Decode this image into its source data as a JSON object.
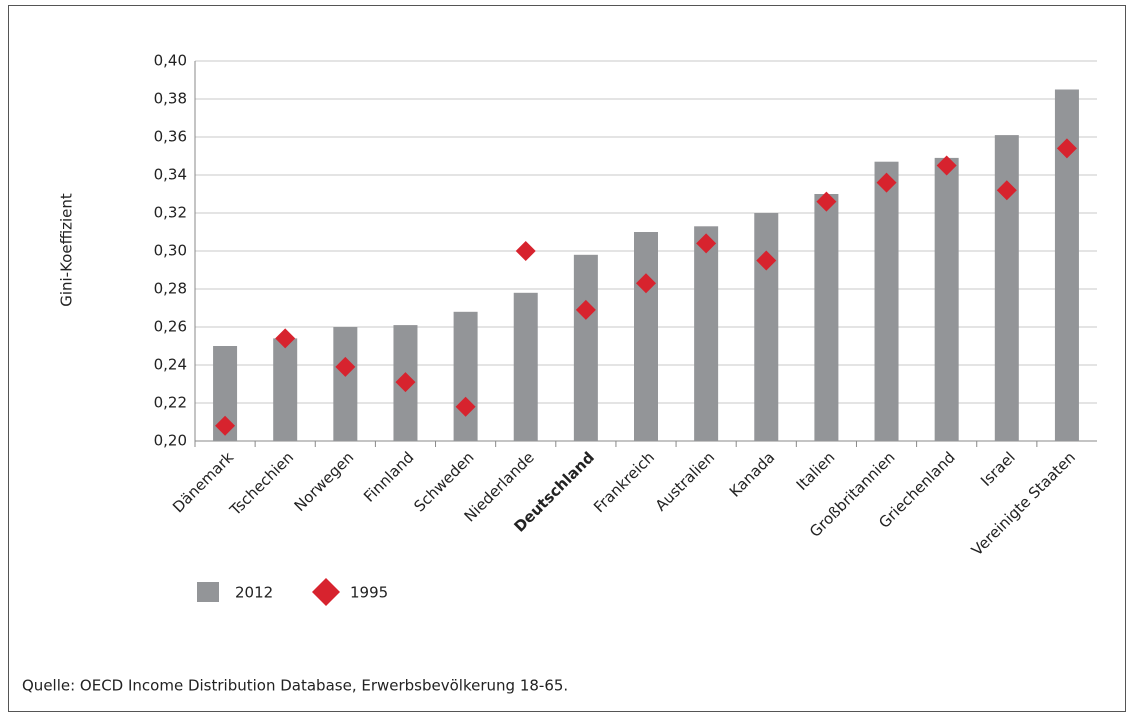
{
  "chart_data": {
    "type": "bar",
    "y_label": "Gini-Koeffizient",
    "categories": [
      "Dänemark",
      "Tschechien",
      "Norwegen",
      "Finnland",
      "Schweden",
      "Niederlande",
      "Deutschland",
      "Frankreich",
      "Australien",
      "Kanada",
      "Italien",
      "Großbritannien",
      "Griechenland",
      "Israel",
      "Vereinigte Staaten"
    ],
    "series": [
      {
        "name": "2012",
        "color": "#939598",
        "values": [
          0.25,
          0.254,
          0.26,
          0.261,
          0.268,
          0.278,
          0.298,
          0.31,
          0.313,
          0.32,
          0.33,
          0.347,
          0.349,
          0.361,
          0.385
        ]
      },
      {
        "name": "1995",
        "color": "#d7232e",
        "marker": "diamond",
        "values": [
          0.208,
          0.254,
          0.239,
          0.231,
          0.218,
          0.3,
          0.269,
          0.283,
          0.304,
          0.295,
          0.326,
          0.336,
          0.345,
          0.332,
          0.354
        ]
      }
    ],
    "ylim": [
      0.2,
      0.4
    ],
    "yticks": [
      {
        "value": 0.2,
        "label": "0,20"
      },
      {
        "value": 0.22,
        "label": "0,22"
      },
      {
        "value": 0.24,
        "label": "0,24"
      },
      {
        "value": 0.26,
        "label": "0,26"
      },
      {
        "value": 0.28,
        "label": "0,28"
      },
      {
        "value": 0.3,
        "label": "0,30"
      },
      {
        "value": 0.32,
        "label": "0,32"
      },
      {
        "value": 0.34,
        "label": "0,34"
      },
      {
        "value": 0.36,
        "label": "0,36"
      },
      {
        "value": 0.38,
        "label": "0,38"
      },
      {
        "value": 0.4,
        "label": "0,40"
      }
    ],
    "grid": true,
    "source": "Quelle: OECD Income Distribution Database, Erwerbsbevölkerung 18-65."
  }
}
